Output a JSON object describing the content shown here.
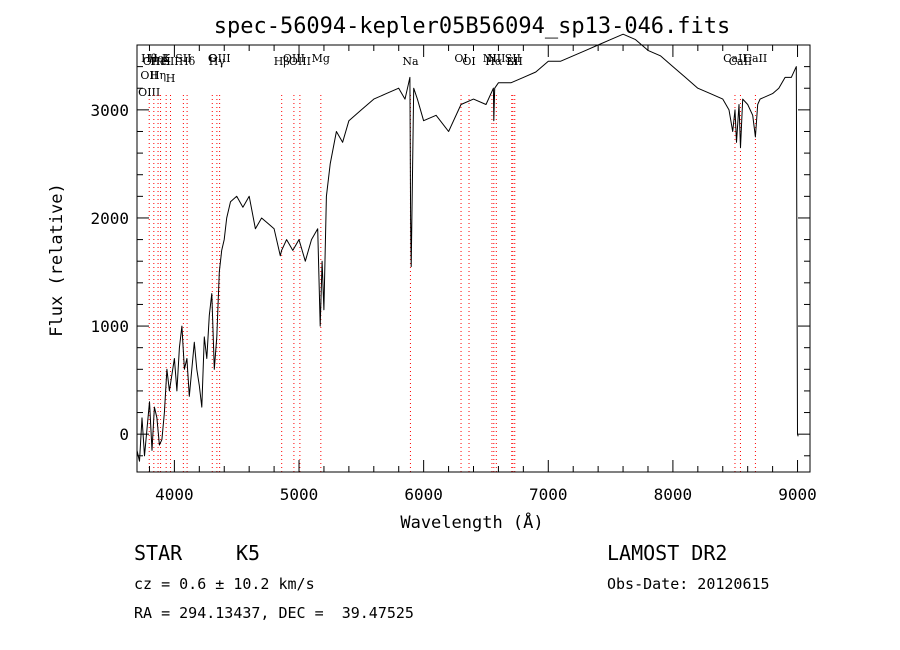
{
  "chart_data": {
    "type": "line",
    "title": "spec-56094-kepler05B56094_sp13-046.fits",
    "xlabel": "Wavelength (Å)",
    "ylabel": "Flux (relative)",
    "xlim": [
      3700,
      9100
    ],
    "ylim": [
      -350,
      3600
    ],
    "xticks": [
      4000,
      5000,
      6000,
      7000,
      8000,
      9000
    ],
    "yticks": [
      0,
      1000,
      2000,
      3000
    ],
    "grid": false,
    "line_color": "#000000",
    "marker_color": "#ff0000",
    "series": [
      {
        "x": [
          3700,
          3720,
          3740,
          3760,
          3780,
          3800,
          3820,
          3840,
          3860,
          3880,
          3900,
          3920,
          3940,
          3960,
          3980,
          4000,
          4020,
          4040,
          4060,
          4080,
          4100,
          4120,
          4140,
          4160,
          4180,
          4200,
          4220,
          4240,
          4260,
          4280,
          4300,
          4320,
          4340,
          4360,
          4380,
          4400,
          4420,
          4450,
          4500,
          4550,
          4600,
          4650,
          4700,
          4750,
          4800,
          4850,
          4860,
          4900,
          4950,
          5000,
          5050,
          5100,
          5150,
          5170,
          5185,
          5200,
          5220,
          5250,
          5300,
          5350,
          5400,
          5500,
          5600,
          5700,
          5800,
          5850,
          5880,
          5890,
          5895,
          5900,
          5920,
          5950,
          6000,
          6100,
          6200,
          6300,
          6400,
          6500,
          6560,
          6563,
          6570,
          6600,
          6700,
          6800,
          6900,
          7000,
          7100,
          7200,
          7300,
          7400,
          7500,
          7600,
          7700,
          7800,
          7900,
          8000,
          8100,
          8200,
          8300,
          8400,
          8450,
          8480,
          8498,
          8510,
          8530,
          8542,
          8560,
          8600,
          8640,
          8662,
          8680,
          8700,
          8800,
          8850,
          8900,
          8950,
          8990,
          9000,
          9005
        ],
        "y": [
          -150,
          -250,
          150,
          -200,
          50,
          300,
          -150,
          250,
          150,
          -100,
          -50,
          200,
          600,
          400,
          550,
          700,
          400,
          800,
          1000,
          600,
          700,
          350,
          600,
          850,
          600,
          450,
          250,
          900,
          700,
          1100,
          1300,
          600,
          900,
          1500,
          1700,
          1800,
          2000,
          2150,
          2200,
          2100,
          2200,
          1900,
          2000,
          1950,
          1900,
          1650,
          1700,
          1800,
          1700,
          1800,
          1600,
          1800,
          1900,
          1000,
          1600,
          1150,
          2200,
          2500,
          2800,
          2700,
          2900,
          3000,
          3100,
          3150,
          3200,
          3100,
          3250,
          3300,
          2000,
          1550,
          3200,
          3100,
          2900,
          2950,
          2800,
          3050,
          3100,
          3050,
          3200,
          2900,
          3200,
          3250,
          3250,
          3300,
          3350,
          3450,
          3450,
          3500,
          3550,
          3600,
          3650,
          3700,
          3650,
          3550,
          3500,
          3400,
          3300,
          3200,
          3150,
          3100,
          3000,
          2800,
          3000,
          2700,
          3050,
          2650,
          3100,
          3050,
          2950,
          2750,
          3050,
          3100,
          3150,
          3200,
          3300,
          3300,
          3400,
          0,
          -20
        ]
      }
    ],
    "line_markers": [
      {
        "x": 3798,
        "labels": [
          "Hθ",
          "OII",
          "OIII"
        ]
      },
      {
        "x": 3835,
        "labels": [
          "OIII"
        ]
      },
      {
        "x": 3869,
        "labels": [
          "HeI",
          "Hη"
        ]
      },
      {
        "x": 3889,
        "labels": [
          "HeI"
        ]
      },
      {
        "x": 3934,
        "labels": [
          "K"
        ]
      },
      {
        "x": 3969,
        "labels": [
          "SII",
          "H"
        ]
      },
      {
        "x": 4072,
        "labels": [
          "SII"
        ]
      },
      {
        "x": 4102,
        "labels": [
          "Hδ"
        ]
      },
      {
        "x": 4304,
        "labels": [
          "G"
        ]
      },
      {
        "x": 4341,
        "labels": [
          "Hγ"
        ]
      },
      {
        "x": 4363,
        "labels": [
          "OIII"
        ]
      },
      {
        "x": 4861,
        "labels": [
          "Hβ"
        ]
      },
      {
        "x": 4959,
        "labels": [
          "OIII"
        ]
      },
      {
        "x": 5007,
        "labels": [
          "OIII"
        ]
      },
      {
        "x": 5175,
        "labels": [
          "Mg"
        ]
      },
      {
        "x": 5894,
        "labels": [
          "Na"
        ]
      },
      {
        "x": 6300,
        "labels": [
          "OI"
        ]
      },
      {
        "x": 6364,
        "labels": [
          "OI"
        ]
      },
      {
        "x": 6548,
        "labels": [
          "NII"
        ]
      },
      {
        "x": 6563,
        "labels": [
          "Hα"
        ]
      },
      {
        "x": 6583,
        "labels": [
          "NII"
        ]
      },
      {
        "x": 6707,
        "labels": [
          "Li"
        ]
      },
      {
        "x": 6716,
        "labels": [
          "SII"
        ]
      },
      {
        "x": 6731,
        "labels": [
          "SII"
        ]
      },
      {
        "x": 8498,
        "labels": [
          "CaII"
        ]
      },
      {
        "x": 8542,
        "labels": [
          "CaII"
        ]
      },
      {
        "x": 8662,
        "labels": [
          "CaII"
        ]
      }
    ]
  },
  "info": {
    "object_type": "STAR",
    "subclass": "K5",
    "survey": "LAMOST DR2",
    "redshift": "cz = 0.6 ± 10.2 km/s",
    "obs_date": "Obs-Date: 20120615",
    "coords": "RA = 294.13437, DEC =  39.47525"
  }
}
